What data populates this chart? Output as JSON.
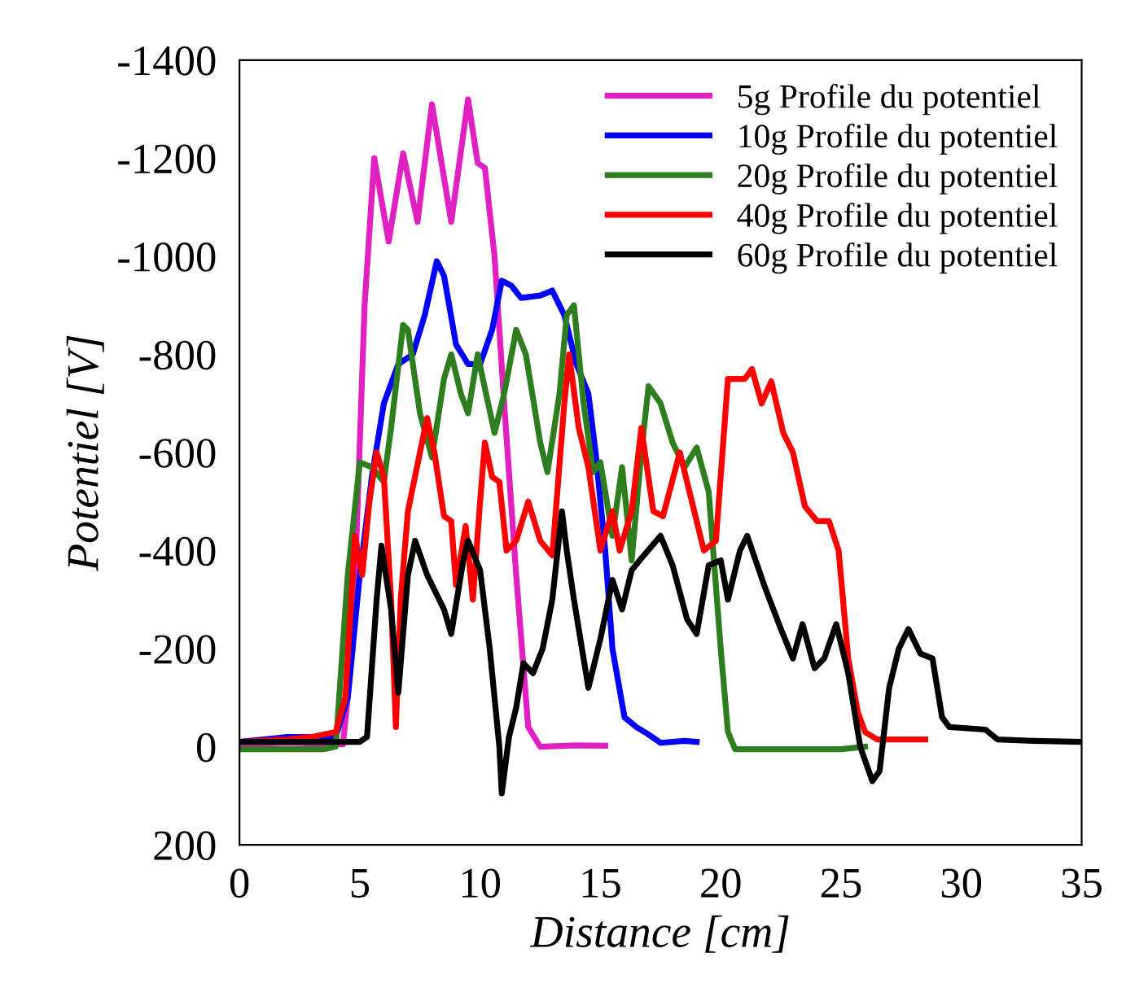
{
  "chart_data": {
    "type": "line",
    "xlabel": "Distance [cm]",
    "ylabel": "Potentiel [V]",
    "xlim": [
      0,
      35
    ],
    "ylim": [
      200,
      -1400
    ],
    "xticks": [
      0,
      5,
      10,
      15,
      20,
      25,
      30,
      35
    ],
    "yticks": [
      -1400,
      -1200,
      -1000,
      -800,
      -600,
      -400,
      -200,
      0,
      200
    ],
    "grid": false,
    "legend": "top right",
    "marker": "none",
    "line_style": "solid",
    "series": [
      {
        "name": "5g Profile du potentiel",
        "color": "#e020c0",
        "x": [
          0,
          2,
          4.3,
          4.7,
          5.2,
          5.6,
          6.2,
          6.8,
          7.4,
          8.0,
          8.8,
          9.5,
          9.9,
          10.2,
          10.6,
          11.0,
          11.5,
          12.0,
          12.5,
          14,
          15.2
        ],
        "values": [
          -5,
          -8,
          -5,
          -200,
          -900,
          -1200,
          -1030,
          -1210,
          -1070,
          -1310,
          -1070,
          -1320,
          -1190,
          -1180,
          -1000,
          -700,
          -350,
          -40,
          0,
          -3,
          -2
        ]
      },
      {
        "name": "10g Profile du potentiel",
        "color": "#0000ff",
        "x": [
          0,
          2,
          4,
          4.5,
          5,
          5.5,
          6,
          6.6,
          7.2,
          7.7,
          8.2,
          8.5,
          9.0,
          9.5,
          10.0,
          10.5,
          10.9,
          11.3,
          11.7,
          12.5,
          13.0,
          13.5,
          14.0,
          14.5,
          14.8,
          15.2,
          15.5,
          16,
          16.5,
          17,
          17.5,
          18.5,
          19
        ],
        "values": [
          -10,
          -20,
          -20,
          -100,
          -350,
          -550,
          -700,
          -780,
          -800,
          -880,
          -990,
          -960,
          -820,
          -780,
          -780,
          -850,
          -950,
          -940,
          -915,
          -920,
          -930,
          -880,
          -780,
          -720,
          -600,
          -400,
          -200,
          -60,
          -40,
          -25,
          -8,
          -12,
          -10
        ]
      },
      {
        "name": "20g Profile du potentiel",
        "color": "#2e7d1e",
        "x": [
          0,
          3.5,
          4.0,
          4.5,
          5,
          5.5,
          6.0,
          6.3,
          6.8,
          7.0,
          7.5,
          8.0,
          8.5,
          8.8,
          9.2,
          9.5,
          9.9,
          10.2,
          10.6,
          11.0,
          11.5,
          11.9,
          12.5,
          12.8,
          13.3,
          13.6,
          13.9,
          14.3,
          14.7,
          15.0,
          15.5,
          15.9,
          16.3,
          16.7,
          17.0,
          17.5,
          18.0,
          18.5,
          19.0,
          19.5,
          20.0,
          20.3,
          20.6,
          22,
          25,
          26
        ],
        "values": [
          5,
          5,
          0,
          -350,
          -580,
          -570,
          -540,
          -650,
          -860,
          -850,
          -680,
          -590,
          -750,
          -800,
          -720,
          -680,
          -800,
          -730,
          -640,
          -720,
          -850,
          -800,
          -620,
          -560,
          -720,
          -880,
          -900,
          -700,
          -560,
          -580,
          -430,
          -570,
          -380,
          -600,
          -735,
          -700,
          -620,
          -570,
          -610,
          -520,
          -200,
          -30,
          5,
          5,
          5,
          0
        ]
      },
      {
        "name": "40g Profile du potentiel",
        "color": "#ff0000",
        "x": [
          0,
          2,
          3,
          4,
          4.4,
          4.8,
          5.1,
          5.4,
          5.7,
          6.0,
          6.3,
          6.5,
          6.7,
          7.0,
          7.5,
          7.8,
          8.1,
          8.5,
          8.8,
          9.0,
          9.4,
          9.7,
          10.0,
          10.2,
          10.5,
          10.8,
          11.1,
          11.5,
          12.0,
          12.5,
          13.0,
          13.5,
          13.7,
          14.1,
          14.5,
          15.0,
          15.5,
          15.8,
          16.3,
          16.7,
          17.2,
          17.6,
          18.3,
          18.8,
          19.3,
          19.8,
          20.3,
          20.6,
          21.0,
          21.3,
          21.7,
          22.1,
          22.6,
          23.0,
          23.5,
          24.0,
          24.5,
          24.9,
          25.3,
          25.7,
          26.0,
          26.5,
          28.5
        ],
        "values": [
          -10,
          -15,
          -20,
          -30,
          -100,
          -430,
          -350,
          -500,
          -600,
          -550,
          -300,
          -40,
          -300,
          -480,
          -600,
          -670,
          -600,
          -470,
          -460,
          -330,
          -450,
          -300,
          -500,
          -620,
          -550,
          -540,
          -400,
          -420,
          -500,
          -420,
          -390,
          -700,
          -800,
          -650,
          -570,
          -400,
          -480,
          -400,
          -480,
          -650,
          -480,
          -470,
          -600,
          -500,
          -400,
          -420,
          -750,
          -750,
          -750,
          -770,
          -700,
          -745,
          -640,
          -600,
          -490,
          -460,
          -460,
          -400,
          -180,
          -70,
          -30,
          -15,
          -15
        ]
      },
      {
        "name": "60g Profile du potentiel",
        "color": "#000000",
        "x": [
          0,
          4,
          5,
          5.3,
          5.7,
          5.9,
          6.3,
          6.6,
          7.0,
          7.3,
          7.8,
          8.2,
          8.5,
          8.8,
          9.3,
          9.5,
          10,
          10.4,
          10.8,
          10.9,
          11.2,
          11.5,
          11.8,
          12.2,
          12.6,
          13.0,
          13.4,
          13.6,
          13.9,
          14.5,
          15.0,
          15.5,
          15.9,
          16.3,
          16.8,
          17.5,
          18.0,
          18.6,
          19.0,
          19.5,
          20.0,
          20.3,
          20.8,
          21.1,
          21.8,
          22.5,
          23.0,
          23.4,
          23.9,
          24.3,
          24.8,
          25.3,
          25.8,
          26.3,
          26.6,
          27.0,
          27.4,
          27.8,
          28.3,
          28.8,
          29.2,
          29.5,
          31,
          31.5,
          33,
          35
        ],
        "values": [
          -10,
          -10,
          -10,
          -20,
          -300,
          -410,
          -280,
          -110,
          -350,
          -420,
          -350,
          -310,
          -280,
          -230,
          -380,
          -420,
          -360,
          -200,
          0,
          95,
          -20,
          -80,
          -170,
          -150,
          -200,
          -300,
          -480,
          -400,
          -300,
          -120,
          -220,
          -340,
          -280,
          -360,
          -390,
          -430,
          -370,
          -260,
          -230,
          -370,
          -380,
          -300,
          -400,
          -430,
          -330,
          -240,
          -180,
          -250,
          -160,
          -180,
          -250,
          -150,
          0,
          70,
          50,
          -120,
          -200,
          -240,
          -190,
          -180,
          -60,
          -40,
          -35,
          -15,
          -12,
          -10
        ]
      }
    ]
  }
}
